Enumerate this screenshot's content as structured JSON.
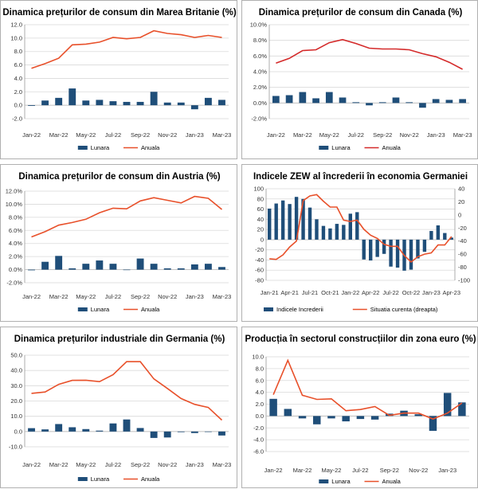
{
  "colors": {
    "bar": "#1f4e79",
    "line": "#e8502a",
    "canada_line": "#d42a2a",
    "grid": "#d9d9d9",
    "zero": "#bfbfbf"
  },
  "chart_data": [
    {
      "type": "bar+line",
      "title": "Dinamica prețurilor de consum din Marea Britanie (%)",
      "categories": [
        "Jan-22",
        "Feb-22",
        "Mar-22",
        "Apr-22",
        "May-22",
        "Jun-22",
        "Jul-22",
        "Aug-22",
        "Sep-22",
        "Oct-22",
        "Nov-22",
        "Dec-22",
        "Jan-23",
        "Feb-23",
        "Mar-23"
      ],
      "x_tick_labels": [
        "Jan-22",
        "Mar-22",
        "May-22",
        "Jul-22",
        "Sep-22",
        "Nov-22",
        "Jan-23",
        "Mar-23"
      ],
      "ylim": [
        -2.0,
        12.0
      ],
      "y_ticks": [
        "12.0",
        "10.0",
        "8.0",
        "6.0",
        "4.0",
        "2.0",
        "0.0",
        "-2.0"
      ],
      "series": [
        {
          "name": "Lunara",
          "kind": "bar",
          "values": [
            -0.1,
            0.7,
            1.1,
            2.5,
            0.7,
            0.8,
            0.6,
            0.5,
            0.5,
            2.0,
            0.4,
            0.4,
            -0.6,
            1.1,
            0.8
          ]
        },
        {
          "name": "Anuala",
          "kind": "line",
          "values": [
            5.5,
            6.2,
            7.0,
            9.0,
            9.1,
            9.4,
            10.1,
            9.9,
            10.1,
            11.1,
            10.7,
            10.5,
            10.1,
            10.4,
            10.1
          ]
        }
      ],
      "legend": "bottom"
    },
    {
      "type": "bar+line",
      "title": "Dinamica prețurilor de consum din Canada (%)",
      "categories": [
        "Jan-22",
        "Feb-22",
        "Mar-22",
        "Apr-22",
        "May-22",
        "Jun-22",
        "Jul-22",
        "Aug-22",
        "Sep-22",
        "Oct-22",
        "Nov-22",
        "Dec-22",
        "Jan-23",
        "Feb-23",
        "Mar-23"
      ],
      "x_tick_labels": [
        "Jan-22",
        "Mar-22",
        "May-22",
        "Jul-22",
        "Sep-22",
        "Nov-22",
        "Jan-23",
        "Mar-23"
      ],
      "ylim": [
        -2.0,
        10.0
      ],
      "y_ticks": [
        "10.0%",
        "8.0%",
        "6.0%",
        "4.0%",
        "2.0%",
        "0.0%",
        "-2.0%"
      ],
      "series": [
        {
          "name": "Lunara",
          "kind": "bar",
          "values": [
            0.9,
            1.0,
            1.4,
            0.6,
            1.4,
            0.7,
            0.1,
            -0.3,
            0.1,
            0.7,
            0.1,
            -0.6,
            0.5,
            0.4,
            0.5
          ]
        },
        {
          "name": "Anuala",
          "kind": "line",
          "values": [
            5.1,
            5.7,
            6.7,
            6.8,
            7.7,
            8.1,
            7.6,
            7.0,
            6.9,
            6.9,
            6.8,
            6.3,
            5.9,
            5.2,
            4.3
          ]
        }
      ],
      "legend": "bottom"
    },
    {
      "type": "bar+line",
      "title": "Dinamica prețurilor de consum din Austria (%)",
      "categories": [
        "Jan-22",
        "Feb-22",
        "Mar-22",
        "Apr-22",
        "May-22",
        "Jun-22",
        "Jul-22",
        "Aug-22",
        "Sep-22",
        "Oct-22",
        "Nov-22",
        "Dec-22",
        "Jan-23",
        "Feb-23",
        "Mar-23"
      ],
      "x_tick_labels": [
        "Jan-22",
        "Mar-22",
        "May-22",
        "Jul-22",
        "Sep-22",
        "Nov-22",
        "Jan-23",
        "Mar-23"
      ],
      "ylim": [
        -2.0,
        12.0
      ],
      "y_ticks": [
        "12.0%",
        "10.0%",
        "8.0%",
        "6.0%",
        "4.0%",
        "2.0%",
        "0.0%",
        "-2.0%"
      ],
      "series": [
        {
          "name": "Lunara",
          "kind": "bar",
          "values": [
            -0.1,
            1.2,
            2.1,
            0.2,
            0.9,
            1.4,
            0.9,
            0.0,
            1.7,
            0.9,
            0.2,
            0.2,
            0.8,
            0.9,
            0.4
          ]
        },
        {
          "name": "Anuala",
          "kind": "line",
          "values": [
            5.0,
            5.8,
            6.8,
            7.2,
            7.7,
            8.7,
            9.4,
            9.3,
            10.5,
            11.0,
            10.6,
            10.2,
            11.2,
            10.9,
            9.2
          ]
        }
      ],
      "legend": "bottom"
    },
    {
      "type": "bar+line",
      "title": "Indicele ZEW al încrederii în economia Germaniei",
      "categories": [
        "Jan-21",
        "Feb-21",
        "Mar-21",
        "Apr-21",
        "May-21",
        "Jun-21",
        "Jul-21",
        "Aug-21",
        "Sep-21",
        "Oct-21",
        "Nov-21",
        "Dec-21",
        "Jan-22",
        "Feb-22",
        "Mar-22",
        "Apr-22",
        "May-22",
        "Jun-22",
        "Jul-22",
        "Aug-22",
        "Sep-22",
        "Oct-22",
        "Nov-22",
        "Dec-22",
        "Jan-23",
        "Feb-23",
        "Mar-23",
        "Apr-23"
      ],
      "x_tick_labels": [
        "Jan-21",
        "Apr-21",
        "Jul-21",
        "Oct-21",
        "Jan-22",
        "Apr-22",
        "Jul-22",
        "Oct-22",
        "Jan-23",
        "Apr-23"
      ],
      "ylim": [
        -80,
        100
      ],
      "y_ticks": [
        "100",
        "80",
        "60",
        "40",
        "20",
        "0",
        "-20",
        "-40",
        "-60",
        "-80"
      ],
      "y2lim": [
        -100,
        40
      ],
      "y2_ticks": [
        "40",
        "20",
        "0",
        "-20",
        "-40",
        "-60",
        "-80",
        "-100"
      ],
      "series": [
        {
          "name": "Indicele Increderii",
          "kind": "bar",
          "axis": "left",
          "values": [
            61,
            71,
            77,
            70,
            84,
            80,
            63,
            40,
            27,
            22,
            31,
            29,
            51,
            54,
            -39,
            -41,
            -34,
            -28,
            -53,
            -55,
            -61,
            -59,
            -37,
            -24,
            17,
            28,
            13,
            4
          ]
        },
        {
          "name": "Situatia curenta (dreapta)",
          "kind": "line",
          "axis": "right",
          "values": [
            -67,
            -68,
            -61,
            -49,
            -40,
            22,
            29,
            31,
            21,
            12,
            12,
            -8,
            -10,
            -8,
            -22,
            -31,
            -36,
            -45,
            -48,
            -48,
            -62,
            -72,
            -64,
            -60,
            -58,
            -46,
            -46,
            -33
          ]
        }
      ],
      "legend": "bottom"
    },
    {
      "type": "bar+line",
      "title": "Dinamica prețurilor industriale din Germania (%)",
      "categories": [
        "Jan-22",
        "Feb-22",
        "Mar-22",
        "Apr-22",
        "May-22",
        "Jun-22",
        "Jul-22",
        "Aug-22",
        "Sep-22",
        "Oct-22",
        "Nov-22",
        "Dec-22",
        "Jan-23",
        "Feb-23",
        "Mar-23"
      ],
      "x_tick_labels": [
        "Jan-22",
        "Mar-22",
        "May-22",
        "Jul-22",
        "Sep-22",
        "Nov-22",
        "Jan-23",
        "Mar-23"
      ],
      "ylim": [
        -10.0,
        50.0
      ],
      "y_ticks": [
        "50.0",
        "40.0",
        "30.0",
        "20.0",
        "10.0",
        "0.0",
        "-10.0"
      ],
      "series": [
        {
          "name": "Lunara",
          "kind": "bar",
          "values": [
            2.2,
            1.4,
            4.9,
            2.8,
            1.6,
            0.6,
            5.3,
            7.9,
            2.3,
            -4.2,
            -3.9,
            -0.4,
            -1.0,
            -0.3,
            -2.6
          ]
        },
        {
          "name": "Anuala",
          "kind": "line",
          "values": [
            25.0,
            25.9,
            30.9,
            33.5,
            33.6,
            32.7,
            37.2,
            45.8,
            45.8,
            34.5,
            28.2,
            21.6,
            17.8,
            15.8,
            7.5
          ]
        }
      ],
      "legend": "bottom"
    },
    {
      "type": "bar+line",
      "title": "Producția în sectorul construcțiilor din zona euro (%)",
      "categories": [
        "Jan-22",
        "Feb-22",
        "Mar-22",
        "Apr-22",
        "May-22",
        "Jun-22",
        "Jul-22",
        "Aug-22",
        "Sep-22",
        "Oct-22",
        "Nov-22",
        "Dec-22",
        "Jan-23",
        "Feb-23"
      ],
      "x_tick_labels": [
        "Jan-22",
        "Mar-22",
        "May-22",
        "Jul-22",
        "Sep-22",
        "Nov-22",
        "Jan-23"
      ],
      "ylim": [
        -6.0,
        10.0
      ],
      "y_ticks": [
        "10.0",
        "8.0",
        "6.0",
        "4.0",
        "2.0",
        "0.0",
        "-2.0",
        "-4.0",
        "-6.0"
      ],
      "series": [
        {
          "name": "Lunara",
          "kind": "bar",
          "values": [
            2.9,
            1.2,
            -0.4,
            -1.4,
            -0.4,
            -0.9,
            -0.5,
            -0.6,
            0.4,
            0.9,
            0.3,
            -2.5,
            3.9,
            2.3
          ]
        },
        {
          "name": "Anuala",
          "kind": "line",
          "values": [
            3.6,
            9.4,
            3.5,
            2.8,
            2.9,
            0.9,
            1.1,
            1.6,
            0.1,
            0.5,
            0.5,
            -0.5,
            0.5,
            2.2
          ]
        }
      ],
      "legend": "bottom"
    }
  ]
}
